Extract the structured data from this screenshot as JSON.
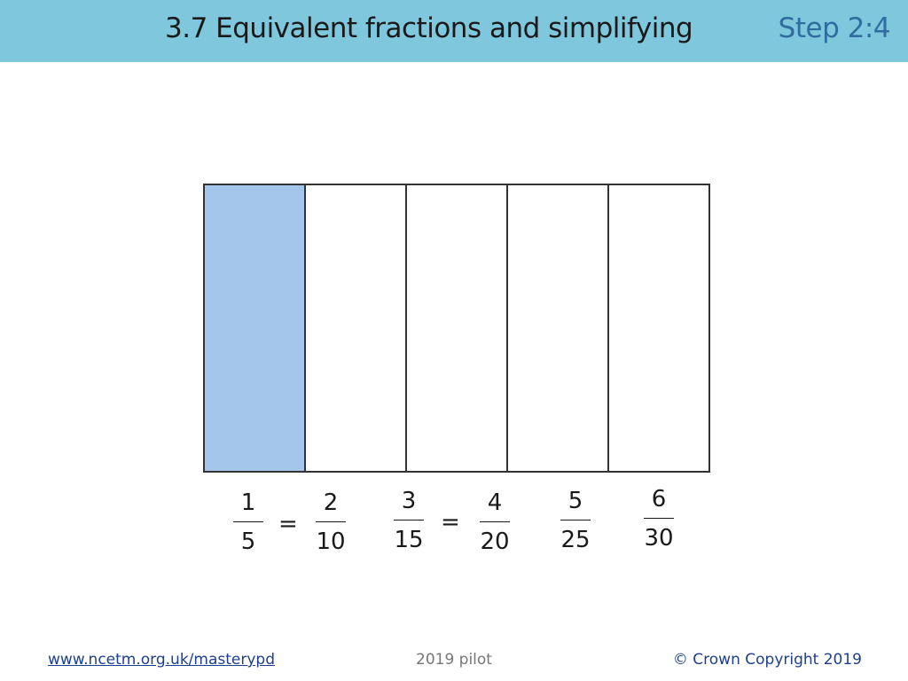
{
  "header": {
    "title": "3.7 Equivalent fractions and simplifying",
    "step": "Step 2:4"
  },
  "fractions": [
    {
      "numerator": 1,
      "denominator": 5
    },
    {
      "numerator": 2,
      "denominator": 10
    },
    {
      "numerator": 3,
      "denominator": 15
    },
    {
      "numerator": 4,
      "denominator": 20
    },
    {
      "numerator": 5,
      "denominator": 25
    },
    {
      "numerator": 6,
      "denominator": 30
    }
  ],
  "equals_signs": [
    "=",
    "="
  ],
  "footer": {
    "link": "www.ncetm.org.uk/masterypd",
    "center": "2019 pilot",
    "copyright": "© Crown Copyright 2019"
  }
}
